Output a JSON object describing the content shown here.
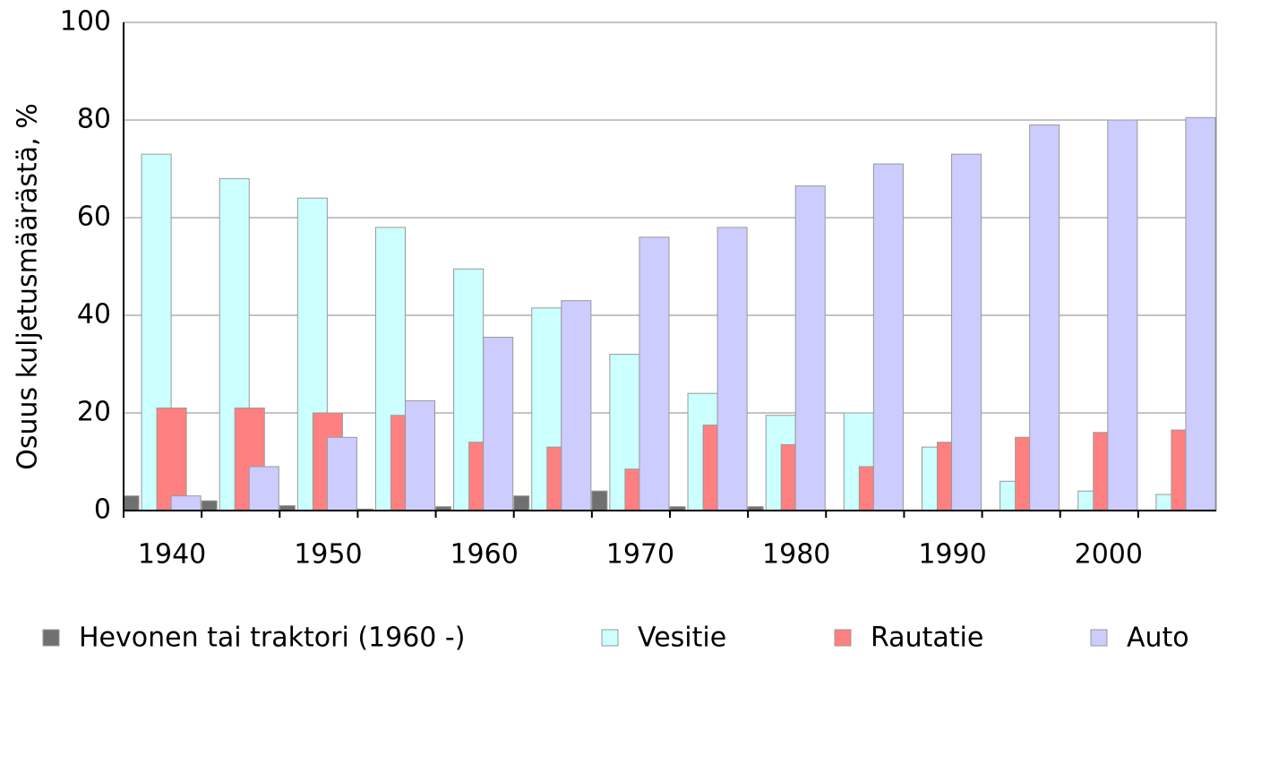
{
  "chart_data": {
    "type": "bar",
    "y_label": "Osuus kuljetusmäärästä, %",
    "categories": [
      "1940",
      null,
      "1950",
      null,
      "1960",
      null,
      "1970",
      null,
      "1980",
      null,
      "1990",
      null,
      "2000",
      null
    ],
    "series": [
      {
        "name": "Hevonen tai traktori (1960 -)",
        "color": "#707070",
        "values": [
          3,
          2,
          1,
          0.3,
          0.8,
          3,
          4,
          0.8,
          0.8,
          0,
          0,
          0,
          0,
          0
        ]
      },
      {
        "name": "Vesitie",
        "color": "#ccffff",
        "values": [
          73,
          68,
          64,
          58,
          49.5,
          41.5,
          32,
          24,
          19.5,
          20,
          13,
          6,
          4,
          3.3
        ]
      },
      {
        "name": "Rautatie",
        "color": "#ff8080",
        "values": [
          21,
          21,
          20,
          19.5,
          14,
          13,
          8.5,
          17.5,
          13.5,
          9,
          14,
          15,
          16,
          16.5
        ]
      },
      {
        "name": "Auto",
        "color": "#ccccff",
        "values": [
          3,
          9,
          15,
          22.5,
          35.5,
          43,
          56,
          58,
          66.5,
          71,
          73,
          79,
          80,
          80.5
        ]
      }
    ],
    "ylim": [
      0,
      100
    ],
    "yticks": [
      0,
      20,
      40,
      60,
      80,
      100
    ],
    "grid": true
  }
}
